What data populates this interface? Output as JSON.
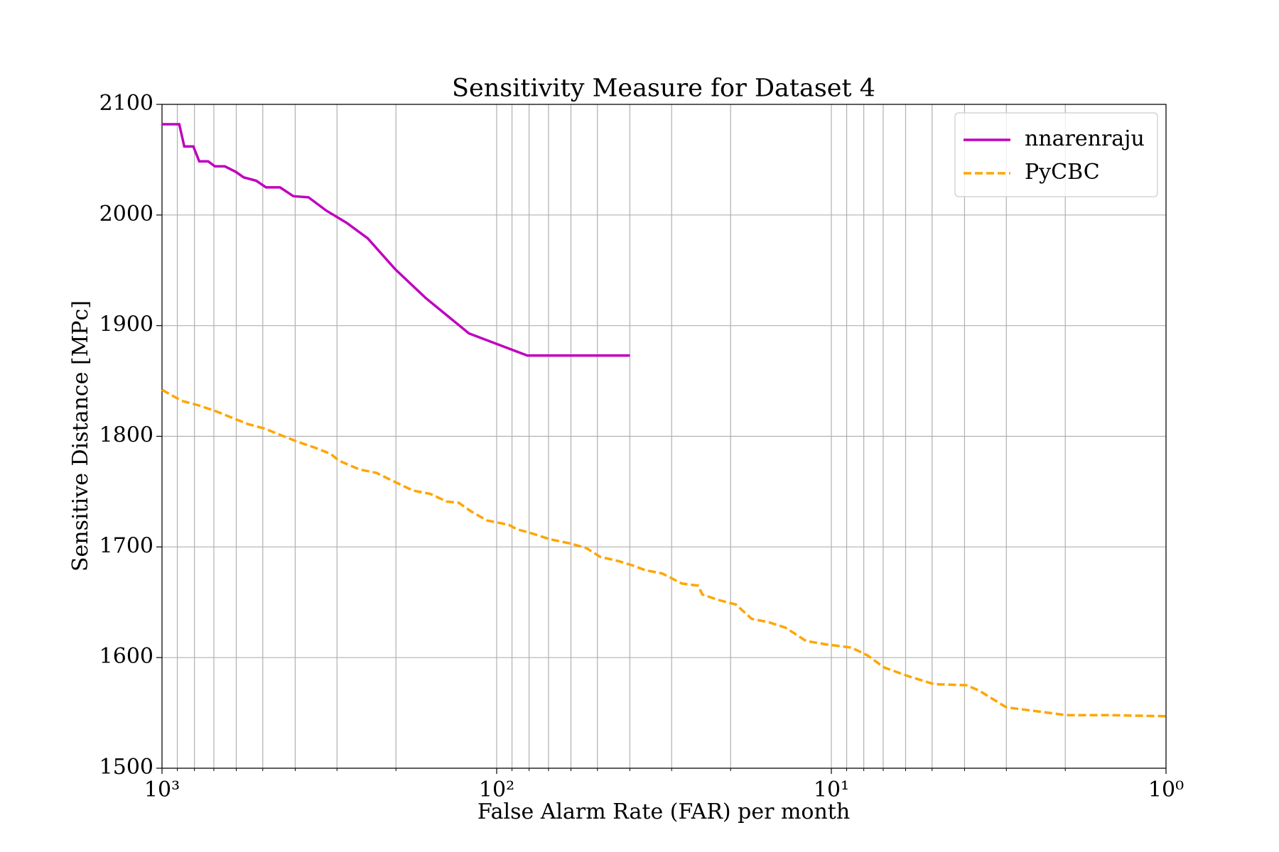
{
  "chart_data": {
    "type": "line",
    "title": "Sensitivity Measure for Dataset 4",
    "xlabel": "False Alarm Rate (FAR) per month",
    "ylabel": "Sensitive Distance [MPc]",
    "xscale": "log",
    "xlim": [
      1000,
      1
    ],
    "ylim": [
      1500,
      2100
    ],
    "xticks": [
      {
        "value": 1000,
        "label": "10³"
      },
      {
        "value": 100,
        "label": "10²"
      },
      {
        "value": 10,
        "label": "10¹"
      },
      {
        "value": 1,
        "label": "10⁰"
      }
    ],
    "xticks_minor": [
      900,
      800,
      700,
      600,
      500,
      400,
      300,
      200,
      90,
      80,
      70,
      60,
      50,
      40,
      30,
      20,
      9,
      8,
      7,
      6,
      5,
      4,
      3,
      2
    ],
    "yticks": [
      1500,
      1600,
      1700,
      1800,
      1900,
      2000,
      2100
    ],
    "grid": true,
    "legend": "upper right",
    "series": [
      {
        "name": "nnarenraju",
        "color": "#bf00bf",
        "linestyle": "solid",
        "x": [
          1000,
          888,
          858,
          806,
          774,
          728,
          695,
          649,
          602,
          570,
          523,
          489,
          444,
          405,
          365,
          323,
          281,
          243,
          201,
          163,
          121,
          81,
          40
        ],
        "values": [
          2082,
          2082,
          2062,
          2062,
          2048.5,
          2048.5,
          2044,
          2044,
          2039,
          2034,
          2031,
          2025,
          2025,
          2017,
          2016,
          2004,
          1993,
          1979,
          1951,
          1925,
          1893,
          1873,
          1873
        ]
      },
      {
        "name": "PyCBC",
        "color": "#ffa500",
        "linestyle": "dashed",
        "x": [
          1000,
          873,
          778,
          695,
          553,
          494,
          441,
          393,
          351,
          313,
          296,
          257,
          229,
          199,
          178,
          158,
          141,
          130,
          119,
          107,
          92,
          87,
          78,
          69.5,
          60,
          54,
          49,
          43,
          39,
          36,
          32,
          28,
          25,
          24.3,
          21.7,
          19.3,
          17.3,
          15.4,
          13.7,
          11.9,
          10.4,
          8.7,
          7.8,
          6.95,
          5.86,
          4.94,
          3.94,
          3.61,
          3.0,
          2.36,
          1.99,
          1.5,
          1
        ],
        "values": [
          1842,
          1832,
          1828,
          1823,
          1811,
          1807,
          1801,
          1795,
          1790,
          1784,
          1778,
          1770,
          1767,
          1758,
          1751,
          1748,
          1741,
          1740,
          1732,
          1724,
          1720,
          1716,
          1712,
          1707,
          1703,
          1699,
          1691,
          1687,
          1683,
          1679,
          1676,
          1667,
          1665,
          1657,
          1652,
          1648,
          1635,
          1632,
          1627,
          1615,
          1612,
          1609,
          1602,
          1591,
          1583,
          1576,
          1575,
          1570,
          1555,
          1551,
          1548,
          1548,
          1547
        ]
      }
    ]
  }
}
